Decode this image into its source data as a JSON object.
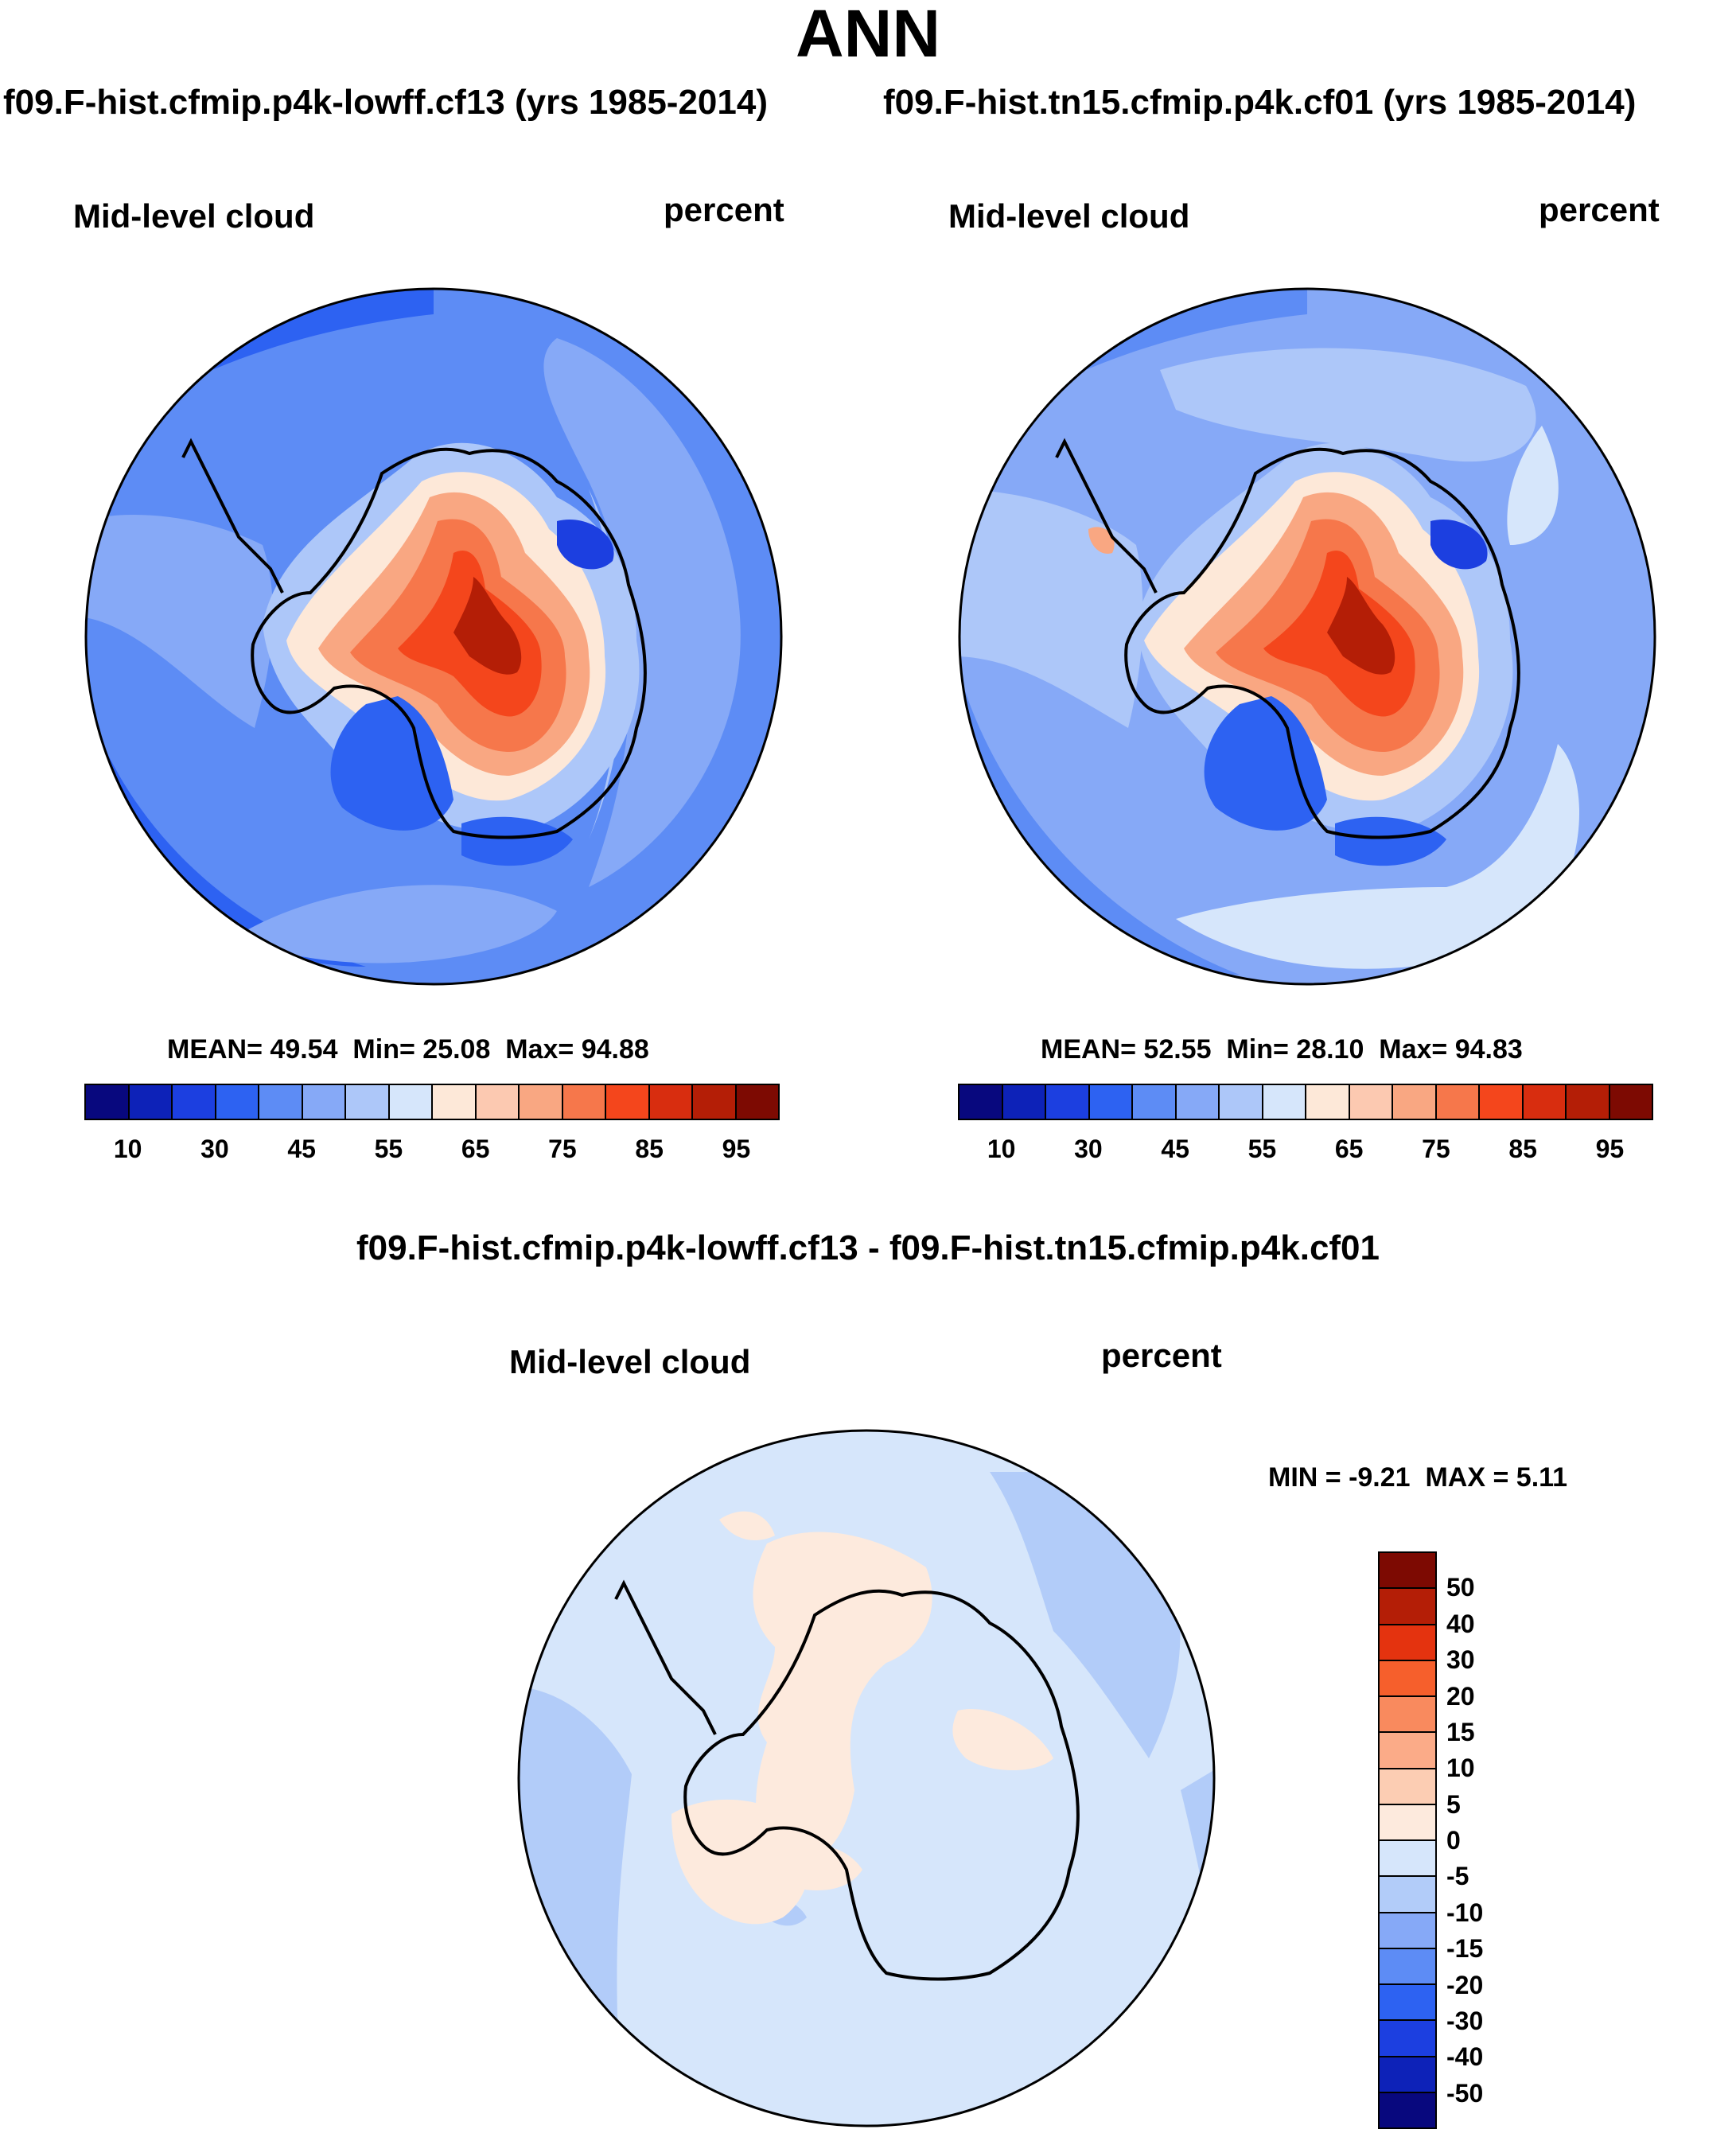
{
  "title": "ANN",
  "case1_title": "f09.F-hist.cfmip.p4k-lowff.cf13 (yrs 1985-2014)",
  "case2_title": "f09.F-hist.tn15.cfmip.p4k.cf01 (yrs 1985-2014)",
  "diff_title": "f09.F-hist.cfmip.p4k-lowff.cf13 - f09.F-hist.tn15.cfmip.p4k.cf01",
  "panels": [
    {
      "variable": "Mid-level cloud",
      "units": "percent",
      "mean_label": "MEAN=",
      "mean": "49.54",
      "min_label": "Min=",
      "min": "25.08",
      "max_label": "Max=",
      "max": "94.88"
    },
    {
      "variable": "Mid-level cloud",
      "units": "percent",
      "mean_label": "MEAN=",
      "mean": "52.55",
      "min_label": "Min=",
      "min": "28.10",
      "max_label": "Max=",
      "max": "94.83"
    },
    {
      "variable": "Mid-level cloud",
      "units": "percent",
      "min_label": "MIN =",
      "min": "-9.21",
      "max_label": "MAX =",
      "max": "5.11"
    }
  ],
  "abs_colorbar": {
    "colors": [
      "#08087e",
      "#0d22b8",
      "#1c3fe0",
      "#2d62f2",
      "#5d8cf5",
      "#86a9f7",
      "#adc7f9",
      "#d6e6fb",
      "#fde8d8",
      "#fcc9b1",
      "#f9a782",
      "#f6774b",
      "#f4461c",
      "#d82d0f",
      "#b41e06",
      "#7d0a02"
    ],
    "labels": [
      "10",
      "30",
      "45",
      "55",
      "65",
      "75",
      "85",
      "95"
    ]
  },
  "diff_colorbar": {
    "colors": [
      "#7d0a02",
      "#b41e06",
      "#e4330f",
      "#f65f2c",
      "#f98a5e",
      "#fbab88",
      "#fccdb3",
      "#fdeadd",
      "#d6e6fb",
      "#b2ccf9",
      "#86a9f7",
      "#5d8cf5",
      "#2d62f2",
      "#1c3fe0",
      "#0d22b8",
      "#08087e"
    ],
    "labels": [
      "50",
      "40",
      "30",
      "20",
      "15",
      "10",
      "5",
      "0",
      "-5",
      "-10",
      "-15",
      "-20",
      "-30",
      "-40",
      "-50"
    ]
  }
}
